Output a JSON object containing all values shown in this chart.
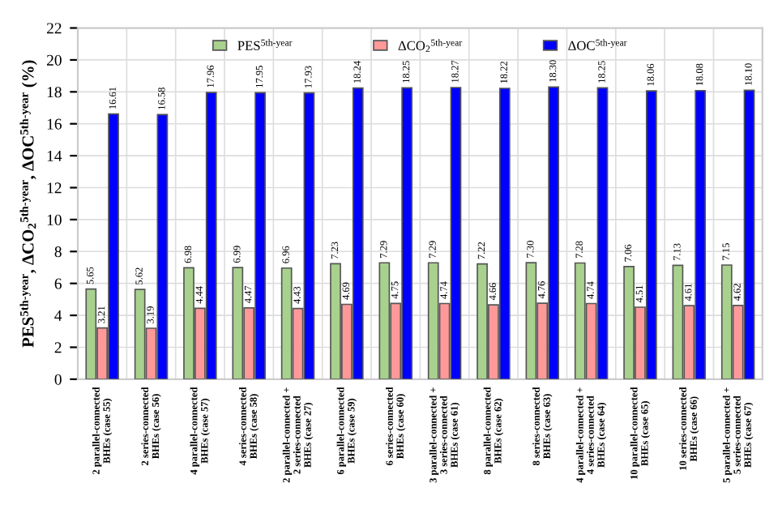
{
  "chart_data": {
    "type": "bar",
    "ylabel": "PES$^{5th-year}$, ΔCO$_{2}$$^{5th-year}$, ΔOC$^{5th-year}$ (%)",
    "categories": [
      "2 parallel-connected\nBHEs (case 55)",
      "2 series-connected\nBHEs (case 56)",
      "4 parallel-connected\nBHEs (case 57)",
      "4 series-connected\nBHEs (case 58)",
      "2 parallel-connected +\n2 series-connected\nBHEs (case 27)",
      "6 parallel-connected\nBHEs (case 59)",
      "6 series-connected\nBHEs (case 60)",
      "3 parallel-connected +\n3 series-connected\nBHEs (case 61)",
      "8 parallel-connected\nBHEs (case 62)",
      "8 series-connected\nBHEs (case 63)",
      "4 parallel-connected +\n4 series-connected\nBHEs (case 64)",
      "10 parallel-connected\nBHEs (case 65)",
      "10 series-connected\nBHEs (case 66)",
      "5 parallel-connected +\n5 series-connected\nBHEs (case 67)"
    ],
    "series": [
      {
        "name": "PES$^{5th-year}$",
        "color": "#a9d18e",
        "values": [
          5.65,
          5.62,
          6.98,
          6.99,
          6.96,
          7.23,
          7.29,
          7.29,
          7.22,
          7.3,
          7.28,
          7.06,
          7.13,
          7.15
        ],
        "value_labels": [
          "5.65",
          "5.62",
          "6.98",
          "6.99",
          "6.96",
          "7.23",
          "7.29",
          "7.29",
          "7.22",
          "7.30",
          "7.28",
          "7.06",
          "7.13",
          "7.15"
        ]
      },
      {
        "name": "ΔCO$_{2}$$^{5th-year}$",
        "color": "#ff9999",
        "values": [
          3.21,
          3.19,
          4.44,
          4.47,
          4.43,
          4.69,
          4.75,
          4.74,
          4.66,
          4.76,
          4.74,
          4.51,
          4.61,
          4.62
        ],
        "value_labels": [
          "3.21",
          "3.19",
          "4.44",
          "4.47",
          "4.43",
          "4.69",
          "4.75",
          "4.74",
          "4.66",
          "4.76",
          "4.74",
          "4.51",
          "4.61",
          "4.62"
        ]
      },
      {
        "name": "ΔOC$^{5th-year}$",
        "color": "#0000ff",
        "values": [
          16.61,
          16.58,
          17.96,
          17.95,
          17.93,
          18.24,
          18.25,
          18.27,
          18.22,
          18.3,
          18.25,
          18.06,
          18.08,
          18.1
        ],
        "value_labels": [
          "16.61",
          "16.58",
          "17.96",
          "17.95",
          "17.93",
          "18.24",
          "18.25",
          "18.27",
          "18.22",
          "18.30",
          "18.25",
          "18.06",
          "18.08",
          "18.10"
        ]
      }
    ],
    "ylim": [
      0,
      22
    ],
    "yticks": [
      0,
      2,
      4,
      6,
      8,
      10,
      12,
      14,
      16,
      18,
      20,
      22
    ],
    "grid": true,
    "legend": "top"
  }
}
